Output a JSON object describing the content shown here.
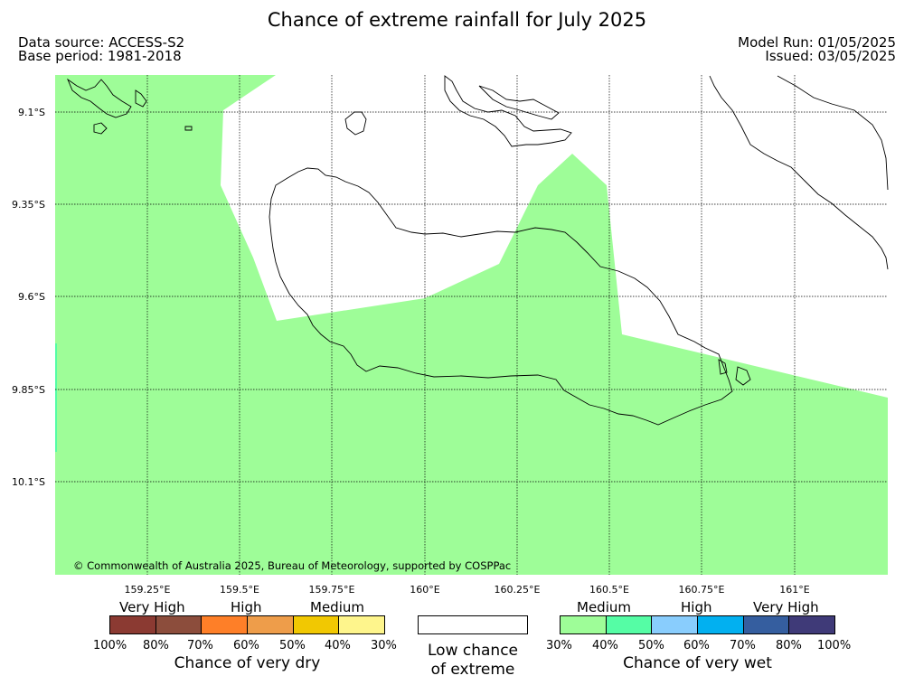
{
  "title": "Chance of extreme rainfall for July 2025",
  "data_source": "Data source: ACCESS-S2",
  "base_period": "Base period: 1981-2018",
  "model_run": "Model Run: 01/05/2025",
  "issued": "Issued: 03/05/2025",
  "copyright": "© Commonwealth of Australia 2025, Bureau of Meteorology, supported by COSPPac",
  "map": {
    "latitude_labels": [
      "9.1°S",
      "9.35°S",
      "9.6°S",
      "9.85°S",
      "10.1°S"
    ],
    "longitude_labels": [
      "159.25°E",
      "159.5°E",
      "159.75°E",
      "160°E",
      "160.25°E",
      "160.5°E",
      "160.75°E",
      "161°E"
    ],
    "colors": {
      "no_data_fill": "#ffffff",
      "medium_wet_fill": "#9efd98",
      "edge_fill": "#55fda5",
      "coastline": "#000000",
      "gridline": "#000000"
    }
  },
  "legend": {
    "dry": {
      "categories": [
        "Very High",
        "High",
        "Medium"
      ],
      "colors": [
        "#8b3a32",
        "#8c4d3c",
        "#fe7f28",
        "#ee9d4a",
        "#f1c802",
        "#fef58c"
      ],
      "ticks": [
        "100%",
        "80%",
        "70%",
        "60%",
        "50%",
        "40%",
        "30%"
      ],
      "caption": "Chance of very dry"
    },
    "low": {
      "line1": "Low chance",
      "line2": "of extreme",
      "color": "#ffffff"
    },
    "wet": {
      "categories": [
        "Medium",
        "High",
        "Very High"
      ],
      "colors": [
        "#9efd98",
        "#55fda5",
        "#89cdfd",
        "#02b0f0",
        "#355e9f",
        "#3f3a78"
      ],
      "ticks": [
        "30%",
        "40%",
        "50%",
        "60%",
        "70%",
        "80%",
        "100%"
      ],
      "caption": "Chance of very wet"
    }
  }
}
